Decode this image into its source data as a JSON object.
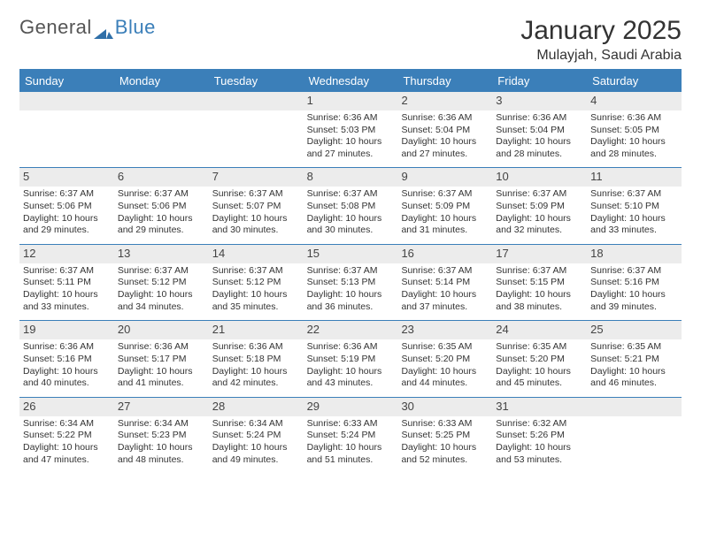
{
  "brand": {
    "text1": "General",
    "text2": "Blue",
    "color_text1": "#666666",
    "color_text2": "#3b7fb9",
    "mark_color": "#2f6fa8"
  },
  "title": {
    "month": "January 2025",
    "location": "Mulayjah, Saudi Arabia"
  },
  "colors": {
    "header_bg": "#3b7fb9",
    "header_text": "#ffffff",
    "daynum_bg": "#ececec",
    "border": "#3b7fb9",
    "body_text": "#333333"
  },
  "dow": [
    "Sunday",
    "Monday",
    "Tuesday",
    "Wednesday",
    "Thursday",
    "Friday",
    "Saturday"
  ],
  "weeks": [
    [
      null,
      null,
      null,
      {
        "n": "1",
        "sr": "6:36 AM",
        "ss": "5:03 PM",
        "dl": "10 hours and 27 minutes."
      },
      {
        "n": "2",
        "sr": "6:36 AM",
        "ss": "5:04 PM",
        "dl": "10 hours and 27 minutes."
      },
      {
        "n": "3",
        "sr": "6:36 AM",
        "ss": "5:04 PM",
        "dl": "10 hours and 28 minutes."
      },
      {
        "n": "4",
        "sr": "6:36 AM",
        "ss": "5:05 PM",
        "dl": "10 hours and 28 minutes."
      }
    ],
    [
      {
        "n": "5",
        "sr": "6:37 AM",
        "ss": "5:06 PM",
        "dl": "10 hours and 29 minutes."
      },
      {
        "n": "6",
        "sr": "6:37 AM",
        "ss": "5:06 PM",
        "dl": "10 hours and 29 minutes."
      },
      {
        "n": "7",
        "sr": "6:37 AM",
        "ss": "5:07 PM",
        "dl": "10 hours and 30 minutes."
      },
      {
        "n": "8",
        "sr": "6:37 AM",
        "ss": "5:08 PM",
        "dl": "10 hours and 30 minutes."
      },
      {
        "n": "9",
        "sr": "6:37 AM",
        "ss": "5:09 PM",
        "dl": "10 hours and 31 minutes."
      },
      {
        "n": "10",
        "sr": "6:37 AM",
        "ss": "5:09 PM",
        "dl": "10 hours and 32 minutes."
      },
      {
        "n": "11",
        "sr": "6:37 AM",
        "ss": "5:10 PM",
        "dl": "10 hours and 33 minutes."
      }
    ],
    [
      {
        "n": "12",
        "sr": "6:37 AM",
        "ss": "5:11 PM",
        "dl": "10 hours and 33 minutes."
      },
      {
        "n": "13",
        "sr": "6:37 AM",
        "ss": "5:12 PM",
        "dl": "10 hours and 34 minutes."
      },
      {
        "n": "14",
        "sr": "6:37 AM",
        "ss": "5:12 PM",
        "dl": "10 hours and 35 minutes."
      },
      {
        "n": "15",
        "sr": "6:37 AM",
        "ss": "5:13 PM",
        "dl": "10 hours and 36 minutes."
      },
      {
        "n": "16",
        "sr": "6:37 AM",
        "ss": "5:14 PM",
        "dl": "10 hours and 37 minutes."
      },
      {
        "n": "17",
        "sr": "6:37 AM",
        "ss": "5:15 PM",
        "dl": "10 hours and 38 minutes."
      },
      {
        "n": "18",
        "sr": "6:37 AM",
        "ss": "5:16 PM",
        "dl": "10 hours and 39 minutes."
      }
    ],
    [
      {
        "n": "19",
        "sr": "6:36 AM",
        "ss": "5:16 PM",
        "dl": "10 hours and 40 minutes."
      },
      {
        "n": "20",
        "sr": "6:36 AM",
        "ss": "5:17 PM",
        "dl": "10 hours and 41 minutes."
      },
      {
        "n": "21",
        "sr": "6:36 AM",
        "ss": "5:18 PM",
        "dl": "10 hours and 42 minutes."
      },
      {
        "n": "22",
        "sr": "6:36 AM",
        "ss": "5:19 PM",
        "dl": "10 hours and 43 minutes."
      },
      {
        "n": "23",
        "sr": "6:35 AM",
        "ss": "5:20 PM",
        "dl": "10 hours and 44 minutes."
      },
      {
        "n": "24",
        "sr": "6:35 AM",
        "ss": "5:20 PM",
        "dl": "10 hours and 45 minutes."
      },
      {
        "n": "25",
        "sr": "6:35 AM",
        "ss": "5:21 PM",
        "dl": "10 hours and 46 minutes."
      }
    ],
    [
      {
        "n": "26",
        "sr": "6:34 AM",
        "ss": "5:22 PM",
        "dl": "10 hours and 47 minutes."
      },
      {
        "n": "27",
        "sr": "6:34 AM",
        "ss": "5:23 PM",
        "dl": "10 hours and 48 minutes."
      },
      {
        "n": "28",
        "sr": "6:34 AM",
        "ss": "5:24 PM",
        "dl": "10 hours and 49 minutes."
      },
      {
        "n": "29",
        "sr": "6:33 AM",
        "ss": "5:24 PM",
        "dl": "10 hours and 51 minutes."
      },
      {
        "n": "30",
        "sr": "6:33 AM",
        "ss": "5:25 PM",
        "dl": "10 hours and 52 minutes."
      },
      {
        "n": "31",
        "sr": "6:32 AM",
        "ss": "5:26 PM",
        "dl": "10 hours and 53 minutes."
      },
      null
    ]
  ],
  "labels": {
    "sunrise": "Sunrise:",
    "sunset": "Sunset:",
    "daylight": "Daylight:"
  }
}
